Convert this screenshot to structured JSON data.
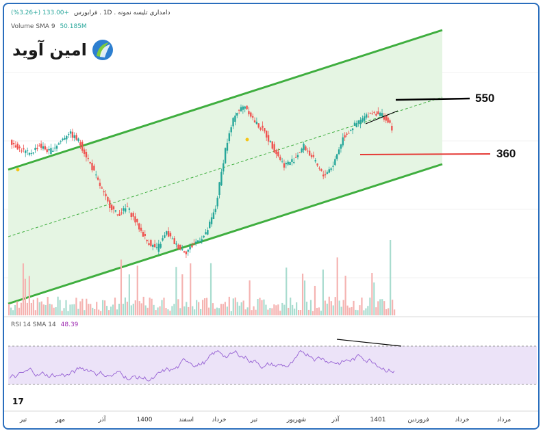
{
  "header": {
    "title": "دامداری تلیسه نمونه . 1D . فرابورس",
    "change": "+133.00 (+3.26%)"
  },
  "volume": {
    "label": "Volume SMA 9",
    "value": "50.185M"
  },
  "rsi": {
    "label": "RSI 14 SMA 14",
    "value": "48.39"
  },
  "logo": {
    "text": "امین آوید",
    "icon": "amin-avid-logo"
  },
  "levels": {
    "upper": "550",
    "lower": "360"
  },
  "tradingview_mark": "17",
  "colors": {
    "up": "#26a69a",
    "down": "#ef5350",
    "channel": "#3fae3f",
    "channel_fill": "#e5f5e3",
    "rsi_line": "#9c6ad6",
    "rsi_band": "#ece3f8",
    "resistance": "#000000",
    "support": "#e53935"
  },
  "chart_data": {
    "type": "candlestick",
    "x_ticks": [
      "تیر",
      "مهر",
      "آذر",
      "1400",
      "اسفند",
      "خرداد",
      "تیر",
      "شهریور",
      "آذر",
      "1401",
      "فروردین",
      "خرداد",
      "مرداد"
    ],
    "price_series": [
      {
        "t": 0,
        "o": 455,
        "c": 440
      },
      {
        "t": 1,
        "o": 440,
        "c": 430
      },
      {
        "t": 2,
        "o": 430,
        "c": 446
      },
      {
        "t": 3,
        "o": 446,
        "c": 435
      },
      {
        "t": 4,
        "o": 435,
        "c": 450
      },
      {
        "t": 5,
        "o": 450,
        "c": 470
      },
      {
        "t": 6,
        "o": 470,
        "c": 455
      },
      {
        "t": 7,
        "o": 455,
        "c": 420
      },
      {
        "t": 8,
        "o": 420,
        "c": 380
      },
      {
        "t": 9,
        "o": 380,
        "c": 340
      },
      {
        "t": 10,
        "o": 340,
        "c": 318
      },
      {
        "t": 11,
        "o": 318,
        "c": 332
      },
      {
        "t": 12,
        "o": 332,
        "c": 300
      },
      {
        "t": 13,
        "o": 300,
        "c": 270
      },
      {
        "t": 14,
        "o": 270,
        "c": 255
      },
      {
        "t": 15,
        "o": 255,
        "c": 285
      },
      {
        "t": 16,
        "o": 285,
        "c": 262
      },
      {
        "t": 17,
        "o": 262,
        "c": 250
      },
      {
        "t": 18,
        "o": 250,
        "c": 268
      },
      {
        "t": 19,
        "o": 268,
        "c": 282
      },
      {
        "t": 20,
        "o": 282,
        "c": 330
      },
      {
        "t": 21,
        "o": 330,
        "c": 440
      },
      {
        "t": 22,
        "o": 440,
        "c": 505
      },
      {
        "t": 23,
        "o": 505,
        "c": 520
      },
      {
        "t": 24,
        "o": 520,
        "c": 490
      },
      {
        "t": 25,
        "o": 490,
        "c": 470
      },
      {
        "t": 26,
        "o": 470,
        "c": 438
      },
      {
        "t": 27,
        "o": 438,
        "c": 410
      },
      {
        "t": 28,
        "o": 410,
        "c": 420
      },
      {
        "t": 29,
        "o": 420,
        "c": 445
      },
      {
        "t": 30,
        "o": 445,
        "c": 420
      },
      {
        "t": 31,
        "o": 420,
        "c": 390
      },
      {
        "t": 32,
        "o": 390,
        "c": 410
      },
      {
        "t": 33,
        "o": 410,
        "c": 460
      },
      {
        "t": 34,
        "o": 460,
        "c": 480
      },
      {
        "t": 35,
        "o": 480,
        "c": 495
      },
      {
        "t": 36,
        "o": 495,
        "c": 508
      },
      {
        "t": 37,
        "o": 508,
        "c": 503
      },
      {
        "t": 38,
        "o": 503,
        "c": 478
      }
    ],
    "rsi_levels": [
      70,
      30
    ],
    "channel": {
      "upper_start": 480,
      "upper_end": 700,
      "lower_start": 180,
      "lower_end": 385
    },
    "annotations": [
      {
        "label": "550",
        "type": "resistance"
      },
      {
        "label": "360",
        "type": "support"
      }
    ]
  }
}
